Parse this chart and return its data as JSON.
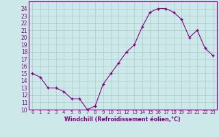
{
  "x": [
    0,
    1,
    2,
    3,
    4,
    5,
    6,
    7,
    8,
    9,
    10,
    11,
    12,
    13,
    14,
    15,
    16,
    17,
    18,
    19,
    20,
    21,
    22,
    23
  ],
  "y": [
    15.0,
    14.5,
    13.0,
    13.0,
    12.5,
    11.5,
    11.5,
    10.0,
    10.5,
    13.5,
    15.0,
    16.5,
    18.0,
    19.0,
    21.5,
    23.5,
    24.0,
    24.0,
    23.5,
    22.5,
    20.0,
    21.0,
    18.5,
    17.5
  ],
  "line_color": "#800080",
  "marker": "+",
  "bg_color": "#cce8e8",
  "grid_color": "#aacccc",
  "xlabel": "Windchill (Refroidissement éolien,°C)",
  "xlim": [
    -0.5,
    23.5
  ],
  "ylim": [
    10,
    25
  ],
  "yticks": [
    10,
    11,
    12,
    13,
    14,
    15,
    16,
    17,
    18,
    19,
    20,
    21,
    22,
    23,
    24
  ],
  "xticks": [
    0,
    1,
    2,
    3,
    4,
    5,
    6,
    7,
    8,
    9,
    10,
    11,
    12,
    13,
    14,
    15,
    16,
    17,
    18,
    19,
    20,
    21,
    22,
    23
  ],
  "tick_color": "#800080",
  "label_color": "#800080",
  "spine_color": "#800080",
  "xlabel_fontsize": 5.8,
  "ytick_fontsize": 5.5,
  "xtick_fontsize": 5.0
}
